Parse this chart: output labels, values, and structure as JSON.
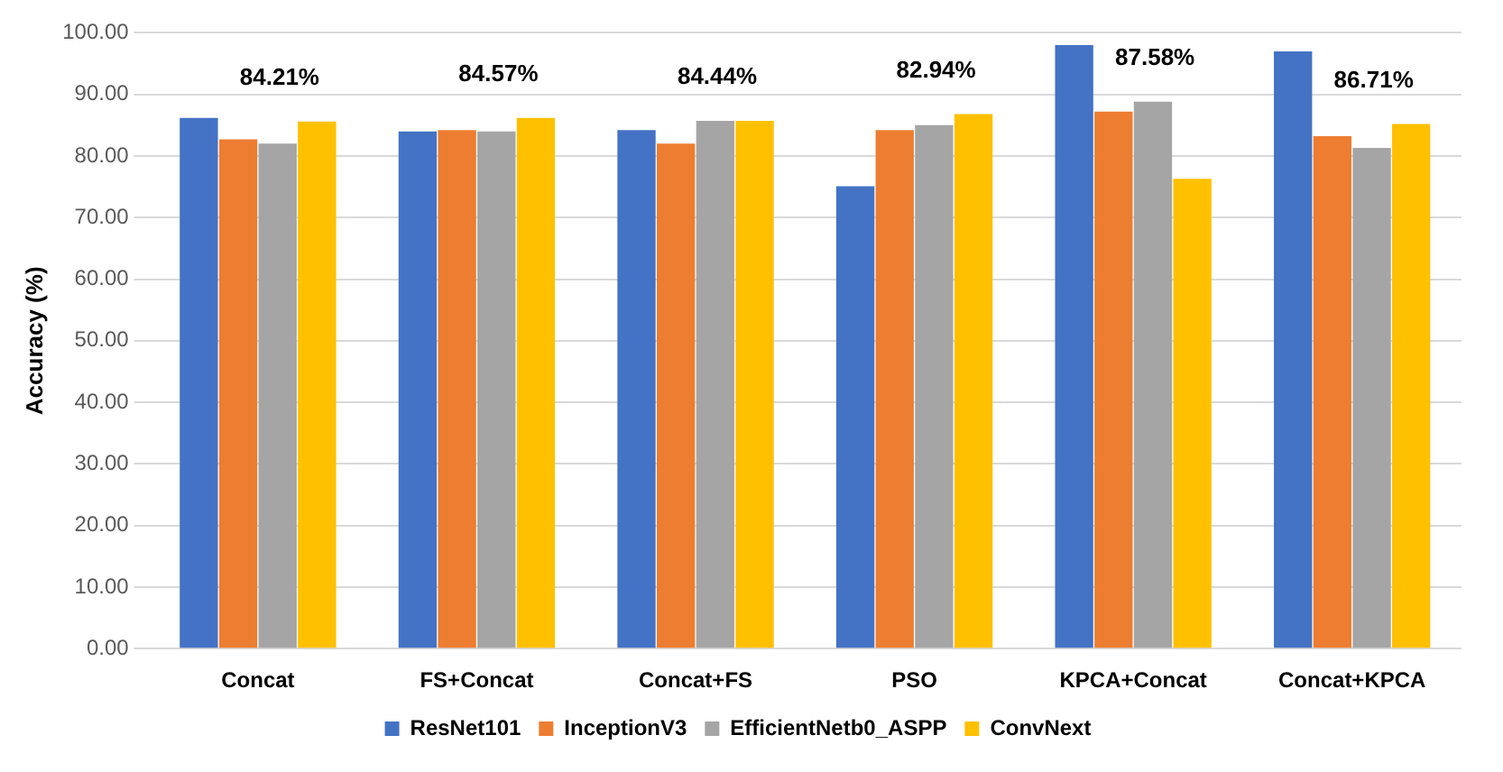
{
  "chart_data": {
    "type": "bar",
    "ylabel": "Accuracy (%)",
    "categories": [
      "Concat",
      "FS+Concat",
      "Concat+FS",
      "PSO",
      "KPCA+Concat",
      "Concat+KPCA"
    ],
    "series": [
      {
        "name": "ResNet101",
        "color": "#4472c4",
        "values": [
          86.2,
          84.0,
          84.2,
          75.1,
          98.0,
          97.0
        ]
      },
      {
        "name": "InceptionV3",
        "color": "#ed7d31",
        "values": [
          82.7,
          84.2,
          82.0,
          84.2,
          87.2,
          83.2
        ]
      },
      {
        "name": "EfficientNetb0_ASPP",
        "color": "#a5a5a5",
        "values": [
          82.0,
          84.0,
          85.7,
          85.0,
          88.8,
          81.3
        ]
      },
      {
        "name": "ConvNext",
        "color": "#ffc000",
        "values": [
          85.6,
          86.2,
          85.7,
          86.8,
          76.3,
          85.2
        ]
      }
    ],
    "ylim": [
      0,
      100
    ],
    "yticks": [
      {
        "value": 0,
        "label": "0.00"
      },
      {
        "value": 10,
        "label": "10.00"
      },
      {
        "value": 20,
        "label": "20.00"
      },
      {
        "value": 30,
        "label": "30.00"
      },
      {
        "value": 40,
        "label": "40.00"
      },
      {
        "value": 50,
        "label": "50.00"
      },
      {
        "value": 60,
        "label": "60.00"
      },
      {
        "value": 70,
        "label": "70.00"
      },
      {
        "value": 80,
        "label": "80.00"
      },
      {
        "value": 90,
        "label": "90.00"
      },
      {
        "value": 100,
        "label": "100.00"
      }
    ],
    "grid": "y",
    "legend": "bottom",
    "annotations": [
      "84.21%",
      "84.57%",
      "84.44%",
      "82.94%",
      "87.58%",
      "86.71%"
    ]
  }
}
